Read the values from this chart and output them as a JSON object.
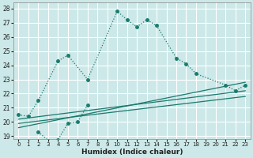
{
  "xlabel": "Humidex (Indice chaleur)",
  "bg_color": "#cce8e8",
  "grid_color": "#ffffff",
  "line_color": "#1a7a6e",
  "xlim": [
    -0.5,
    23.5
  ],
  "ylim": [
    18.8,
    28.4
  ],
  "xticks": [
    0,
    1,
    2,
    3,
    4,
    5,
    6,
    7,
    8,
    9,
    10,
    11,
    12,
    13,
    14,
    15,
    16,
    17,
    18,
    19,
    20,
    21,
    22,
    23
  ],
  "yticks": [
    19,
    20,
    21,
    22,
    23,
    24,
    25,
    26,
    27,
    28
  ],
  "curve1_x": [
    0,
    1,
    2,
    4,
    5,
    7,
    10,
    11,
    12,
    13,
    14,
    16,
    17,
    18,
    21,
    22,
    23
  ],
  "curve1_y": [
    20.5,
    20.4,
    21.5,
    24.3,
    24.7,
    23.0,
    27.8,
    27.2,
    26.7,
    27.2,
    26.8,
    24.5,
    24.1,
    23.4,
    22.6,
    22.2,
    22.6
  ],
  "curve2_x": [
    2,
    3,
    4,
    5,
    6,
    7
  ],
  "curve2_y": [
    19.3,
    18.7,
    18.75,
    19.9,
    20.0,
    21.2
  ],
  "line1_x": [
    0,
    23
  ],
  "line1_y": [
    19.6,
    22.8
  ],
  "line2_x": [
    0,
    23
  ],
  "line2_y": [
    19.9,
    21.8
  ],
  "line3_x": [
    0,
    23
  ],
  "line3_y": [
    20.2,
    22.2
  ]
}
